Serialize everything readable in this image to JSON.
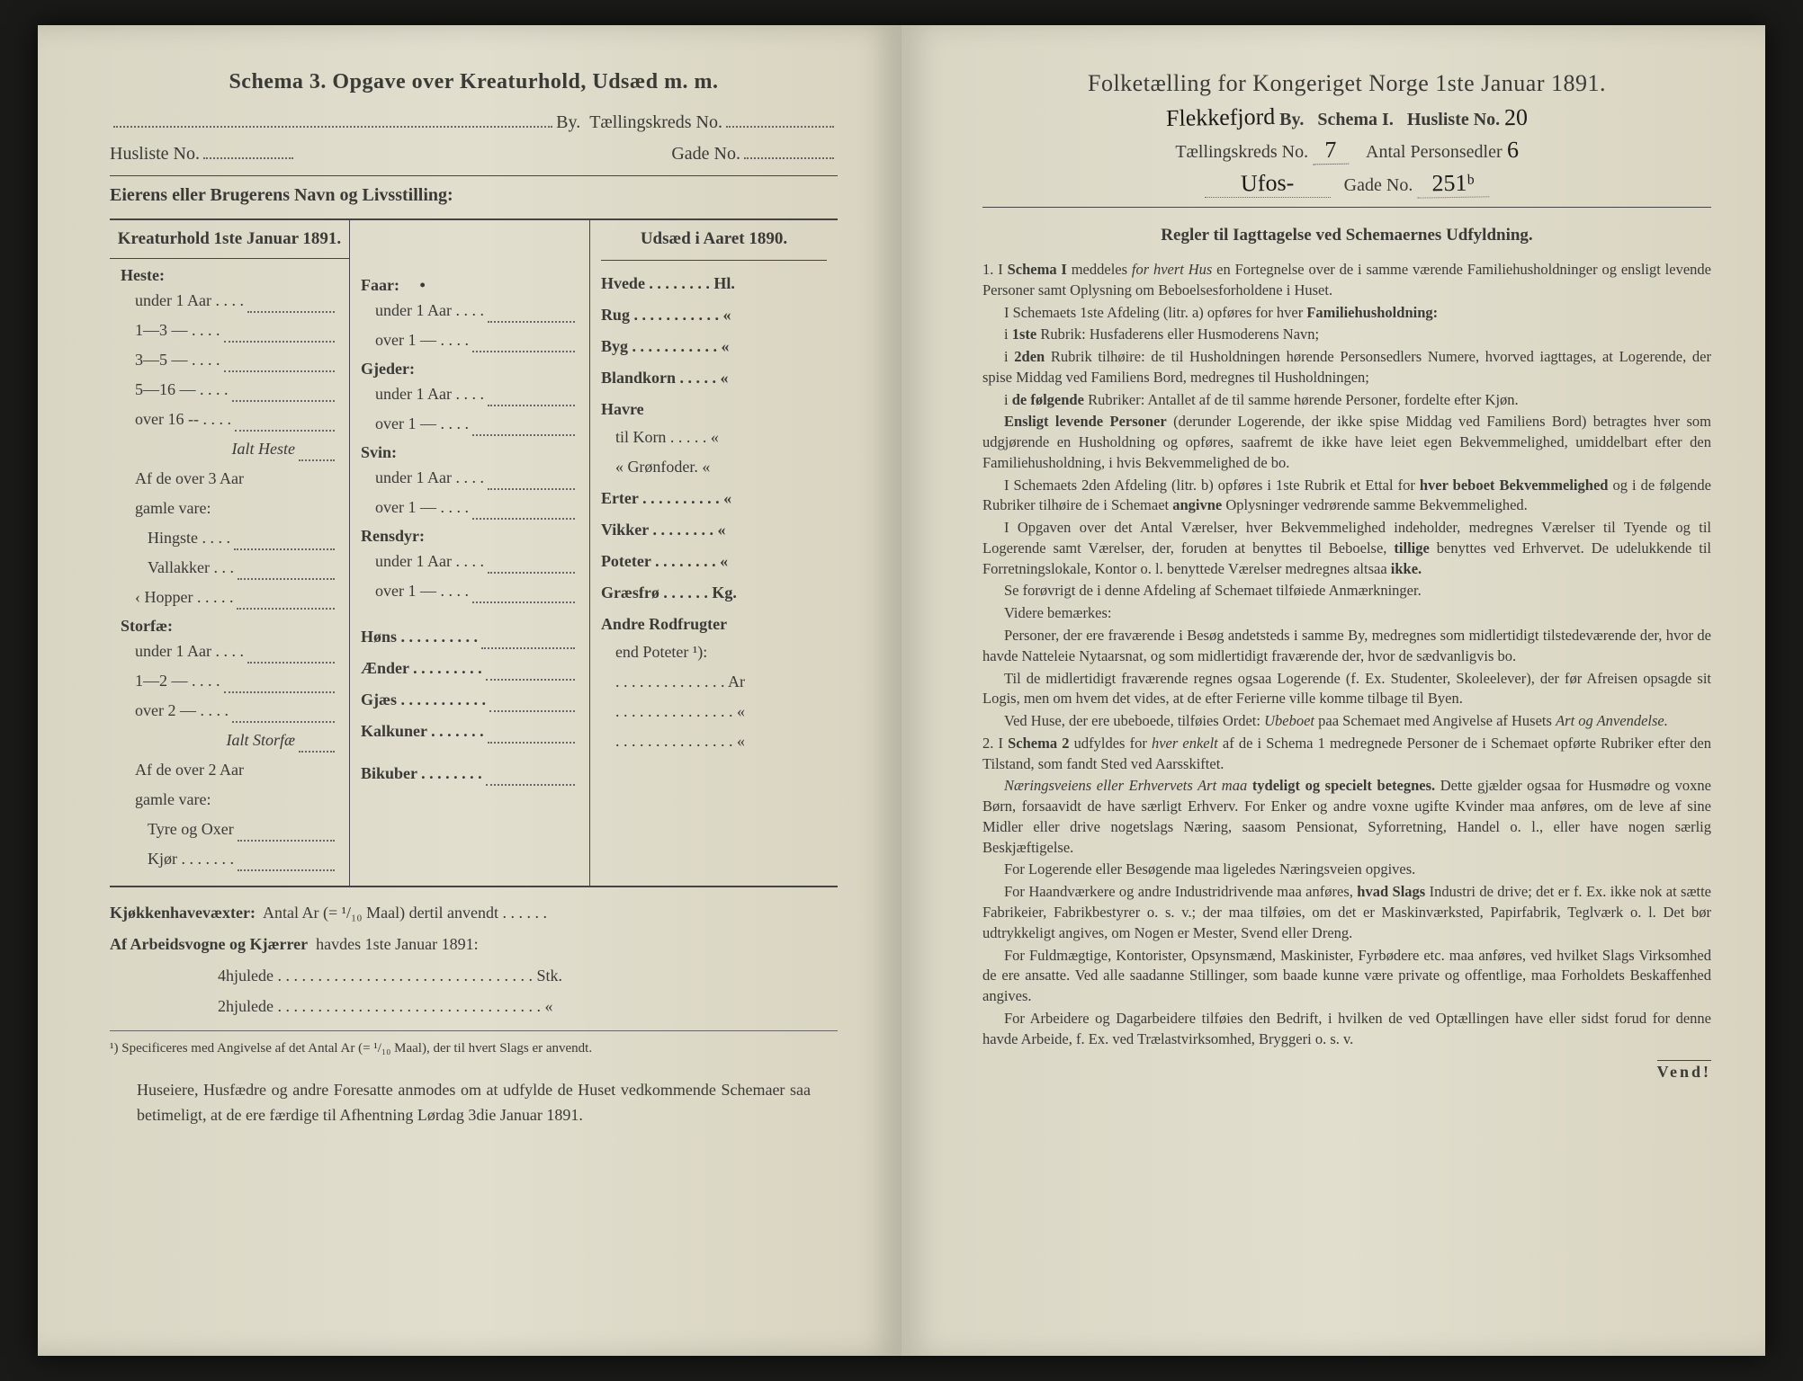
{
  "left": {
    "title": "Schema 3.  Opgave over Kreaturhold, Udsæd m. m.",
    "byLabel": "By.",
    "tkLabel": "Tællingskreds No.",
    "huslisteLabel": "Husliste No.",
    "gadeLabel": "Gade No.",
    "ownerLabel": "Eierens eller Brugerens Navn og Livsstilling:",
    "kreaturHead": "Kreaturhold 1ste Januar 1891.",
    "udsaedHead": "Udsæd i Aaret 1890.",
    "col1": {
      "heste": "Heste:",
      "hesteRows": [
        "under 1 Aar . . . .",
        "1—3  —  . . . .",
        "3—5  —  . . . .",
        "5—16  —  . . . .",
        "over 16 --  . . . ."
      ],
      "ialtHeste": "Ialt Heste",
      "over3": "Af de over 3 Aar",
      "gamleVare": "gamle vare:",
      "hingste": "Hingste . . . .",
      "vallakker": "Vallakker . . .",
      "hopper": "Hopper . . . . .",
      "storfae": "Storfæ:",
      "storfaeRows": [
        "under 1 Aar . . . .",
        "1—2  —  . . . .",
        "over 2  —  . . . ."
      ],
      "ialtStorfae": "Ialt Storfæ",
      "over2": "Af de over 2 Aar",
      "tyre": "Tyre og Oxer",
      "kjor": "Kjør . . . . . . ."
    },
    "col2": {
      "faar": "Faar:",
      "faarRows": [
        "under 1  Aar . . . .",
        "over 1  —  . . . ."
      ],
      "gjeder": "Gjeder:",
      "gjederRows": [
        "under 1 Aar . . . .",
        "over 1  —  . . . ."
      ],
      "svin": "Svin:",
      "svinRows": [
        "under 1 Aar . . . .",
        "over 1  —  . . . ."
      ],
      "rensdyr": "Rensdyr:",
      "rensdyrRows": [
        "under 1 Aar . . . .",
        "over 1  —  . . . ."
      ],
      "hons": "Høns  . . . . . . . . . .",
      "aender": "Ænder  . . . . . . . . .",
      "gjaes": "Gjæs  . . . . . . . . . . .",
      "kalkuner": "Kalkuner . . . . . . .",
      "bikuber": "Bikuber . . . . . . . ."
    },
    "col3": {
      "hvede": "Hvede . . . . . . . . Hl.",
      "rug": "Rug . . . . . . . . . . .  «",
      "byg": "Byg . . . . . . . . . . .  «",
      "blandkorn": "Blandkorn . . . . .  «",
      "havre": "Havre",
      "tilKorn": "til Korn . . . . .  «",
      "gronfoder": "«  Grønfoder.  «",
      "erter": "Erter . . . . . . . . . .  «",
      "vikker": "Vikker  . . . . . . . .  «",
      "poteter": "Poteter . . . . . . . .  «",
      "graesfro": "Græsfrø . . . . . . Kg.",
      "andre": "Andre Rodfrugter",
      "endPoteter": "end Poteter ¹):",
      "arDots": ". . . . . . . . . . . . . . Ar",
      "dots": ". . . . . . . . . . . . . . .  «"
    },
    "kjokken": "Kjøkkenhavevæxter:",
    "kjokkenText": "Antal Ar (= ¹/₁₀ Maal) dertil anvendt . . . . . .",
    "arbeids": "Af Arbeidsvogne og Kjærrer",
    "arbeidsText": "havdes 1ste Januar 1891:",
    "hjul4": "4hjulede . . . . . . . . . . . . . . . . . . . . . . . . . . . . . . . . Stk.",
    "hjul2": "2hjulede . . . . . . . . . . . . . . . . . . . . . . . . . . . . . . . . .  «",
    "footnote": "¹) Specificeres med Angivelse af det Antal Ar (= ¹/₁₀ Maal), der til hvert Slags er anvendt.",
    "finalNote": "Huseiere, Husfædre og andre Foresatte anmodes om at udfylde de Huset vedkommende Schemaer saa betimeligt, at de ere færdige til Afhentning Lørdag 3die Januar 1891."
  },
  "right": {
    "title": "Folketælling for Kongeriget Norge 1ste Januar 1891.",
    "byHand": "Flekkefjord",
    "byLabel": "By.",
    "schemaLabel": "Schema I.",
    "huslisteLabel": "Husliste No.",
    "huslisteVal": "20",
    "tkLabel": "Tællingskreds No.",
    "tkVal": "7",
    "personLabel": "Antal Personsedler",
    "personVal": "6",
    "gadeHand": "Ufos-",
    "gadeLabel": "Gade No.",
    "gadeVal": "251ᵇ",
    "rulesTitle": "Regler til Iagttagelse ved Schemaernes Udfyldning.",
    "rules": [
      "1. I <b>Schema I</b> meddeles <i>for hvert Hus</i> en Fortegnelse over de i samme værende Familiehusholdninger og ensligt levende Personer samt Oplysning om Beboelsesforholdene i Huset.",
      "I Schemaets 1ste Afdeling (litr. a) opføres for hver <b>Familiehusholdning:</b>",
      "i <b>1ste</b> Rubrik: Husfaderens eller Husmoderens Navn;",
      "i <b>2den</b> Rubrik tilhøire: de til Husholdningen hørende Personsedlers Numere, hvorved iagttages, at Logerende, der spise Middag ved Familiens Bord, medregnes til Husholdningen;",
      "i <b>de følgende</b> Rubriker: Antallet af de til samme hørende Personer, fordelte efter Kjøn.",
      "<b>Ensligt levende Personer</b> (derunder Logerende, der ikke spise Middag ved Familiens Bord) betragtes hver som udgjørende en Husholdning og opføres, saafremt de ikke have leiet egen Bekvemmelighed, umiddelbart efter den Familiehusholdning, i hvis Bekvemmelighed de bo.",
      "I Schemaets 2den Afdeling (litr. b) opføres i 1ste Rubrik et Ettal for <b>hver beboet Bekvemmelighed</b> og i de følgende Rubriker tilhøire de i Schemaet <b>angivne</b> Oplysninger vedrørende samme Bekvemmelighed.",
      "I Opgaven over det Antal Værelser, hver Bekvemmelighed indeholder, medregnes Værelser til Tyende og til Logerende samt Værelser, der, foruden at benyttes til Beboelse, <b>tillige</b> benyttes ved Erhvervet. De udelukkende til Forretningslokale, Kontor o. l. benyttede Værelser medregnes altsaa <b>ikke.</b>",
      "Se forøvrigt de i denne Afdeling af Schemaet tilføiede Anmærkninger.",
      "Videre bemærkes:",
      "Personer, der ere fraværende i Besøg andetsteds i samme By, medregnes som midlertidigt tilstedeværende der, hvor de havde Natteleie Nytaarsnat, og som midlertidigt fraværende der, hvor de sædvanligvis bo.",
      "Til de midlertidigt fraværende regnes ogsaa Logerende (f. Ex. Studenter, Skoleelever), der før Afreisen opsagde sit Logis, men om hvem det vides, at de efter Ferierne ville komme tilbage til Byen.",
      "Ved Huse, der ere ubeboede, tilføies Ordet: <i>Ubeboet</i> paa Schemaet med Angivelse af Husets <i>Art og Anvendelse.</i>",
      "2. I <b>Schema 2</b> udfyldes for <i>hver enkelt</i> af de i Schema 1 medregnede Personer de i Schemaet opførte Rubriker efter den Tilstand, som fandt Sted ved Aarsskiftet.",
      "<i>Næringsveiens eller Erhvervets Art maa</i> <b>tydeligt og specielt betegnes.</b> Dette gjælder ogsaa for Husmødre og voxne Børn, forsaavidt de have særligt Erhverv. For Enker og andre voxne ugifte Kvinder maa anføres, om de leve af sine Midler eller drive nogetslags Næring, saasom Pensionat, Syforretning, Handel o. l., eller have nogen særlig Beskjæftigelse.",
      "For Logerende eller Besøgende maa ligeledes Næringsveien opgives.",
      "For Haandværkere og andre Industridrivende maa anføres, <b>hvad Slags</b> Industri de drive; det er f. Ex. ikke nok at sætte Fabrikeier, Fabrikbestyrer o. s. v.; der maa tilføies, om det er Maskinværksted, Papirfabrik, Teglværk o. l. Det bør udtrykkeligt angives, om Nogen er Mester, Svend eller Dreng.",
      "For Fuldmægtige, Kontorister, Opsynsmænd, Maskinister, Fyrbødere etc. maa anføres, ved hvilket Slags Virksomhed de ere ansatte. Ved alle saadanne Stillinger, som baade kunne være private og offentlige, maa Forholdets Beskaffenhed angives.",
      "For Arbeidere og Dagarbeidere tilføies den Bedrift, i hvilken de ved Optællingen have eller sidst forud for denne havde Arbeide, f. Ex. ved Trælastvirksomhed, Bryggeri o. s. v."
    ],
    "vend": "Vend!"
  },
  "colors": {
    "paper": "#dcd8c6",
    "ink": "#3a3a36",
    "handwriting": "#1a1a18"
  }
}
